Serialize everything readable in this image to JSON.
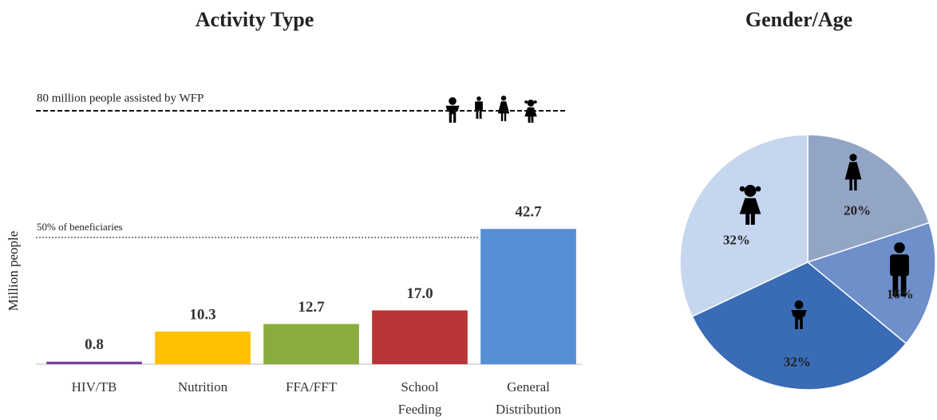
{
  "chart_data": [
    {
      "type": "bar",
      "title": "Activity Type",
      "ylabel": "Million people",
      "categories": [
        "HIV/TB",
        "Nutrition",
        "FFA/FFT",
        "School Feeding",
        "General Distribution"
      ],
      "values": [
        0.8,
        10.3,
        12.7,
        17.0,
        42.7
      ],
      "value_labels": [
        "0.8",
        "10.3",
        "12.7",
        "17.0",
        "42.7"
      ],
      "colors": [
        "#7b3f9e",
        "#ffc000",
        "#8aab3e",
        "#b83535",
        "#558ed5"
      ],
      "ylim": [
        0,
        80
      ],
      "reference_lines": [
        {
          "label": "80 million people assisted by WFP",
          "value": 80
        },
        {
          "label": "50% of beneficiaries",
          "value": 40
        }
      ]
    },
    {
      "type": "pie",
      "title": "Gender/Age",
      "values": [
        20,
        16,
        32,
        32
      ],
      "value_labels": [
        "20%",
        "16%",
        "32%",
        "32%"
      ],
      "colors": [
        "#93a5c4",
        "#6e8fca",
        "#3a6bb5",
        "#c5d6ee"
      ]
    }
  ]
}
